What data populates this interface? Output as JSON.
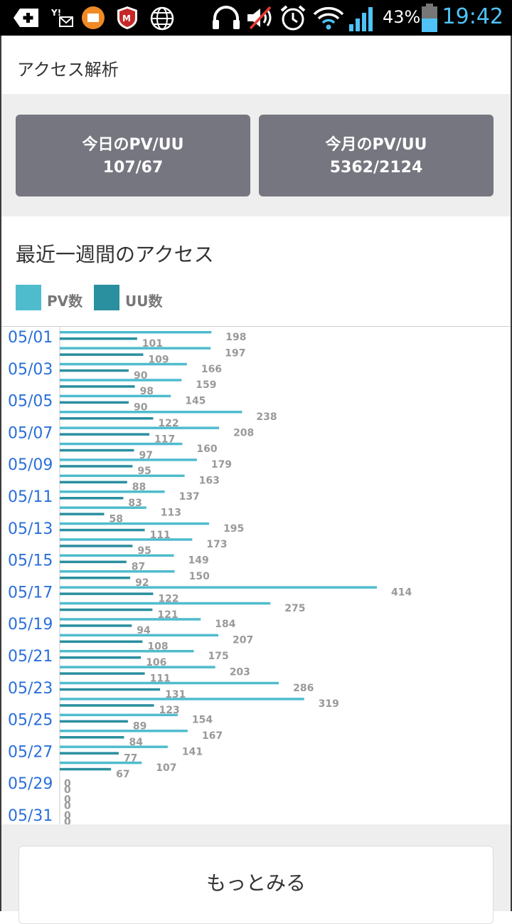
{
  "status_bar": {
    "battery_percent": "43%",
    "time": "19:42"
  },
  "header": {
    "title": "アクセス解析"
  },
  "stats": {
    "today": {
      "label": "今日のPV/UU",
      "value": "107/67"
    },
    "month": {
      "label": "今月のPV/UU",
      "value": "5362/2124"
    }
  },
  "weekly": {
    "title": "最近一週間のアクセス"
  },
  "legend": [
    {
      "label": "PV数",
      "color": "#4fbccd"
    },
    {
      "label": "UU数",
      "color": "#2a8f9f"
    }
  ],
  "chart_data": {
    "type": "bar",
    "orientation": "horizontal",
    "categories": [
      "05/01",
      "05/02",
      "05/03",
      "05/04",
      "05/05",
      "05/06",
      "05/07",
      "05/08",
      "05/09",
      "05/10",
      "05/11",
      "05/12",
      "05/13",
      "05/14",
      "05/15",
      "05/16",
      "05/17",
      "05/18",
      "05/19",
      "05/20",
      "05/21",
      "05/22",
      "05/23",
      "05/24",
      "05/25",
      "05/26",
      "05/27",
      "05/28",
      "05/29",
      "05/30",
      "05/31"
    ],
    "tick_labels": [
      "05/01",
      "05/03",
      "05/05",
      "05/07",
      "05/09",
      "05/11",
      "05/13",
      "05/15",
      "05/17",
      "05/19",
      "05/21",
      "05/23",
      "05/25",
      "05/27",
      "05/29",
      "05/31"
    ],
    "series": [
      {
        "name": "PV数",
        "color": "#4fbccd",
        "values": [
          198,
          197,
          166,
          159,
          145,
          238,
          208,
          160,
          179,
          163,
          137,
          113,
          195,
          173,
          149,
          150,
          414,
          275,
          184,
          207,
          175,
          203,
          286,
          319,
          154,
          167,
          141,
          107,
          0,
          0,
          0
        ]
      },
      {
        "name": "UU数",
        "color": "#2a8f9f",
        "values": [
          101,
          109,
          90,
          98,
          90,
          122,
          117,
          97,
          95,
          88,
          83,
          58,
          111,
          95,
          87,
          92,
          122,
          121,
          94,
          108,
          106,
          111,
          131,
          123,
          89,
          84,
          77,
          67,
          0,
          0,
          0
        ]
      }
    ]
  },
  "more_button": {
    "label": "もっとみる"
  }
}
